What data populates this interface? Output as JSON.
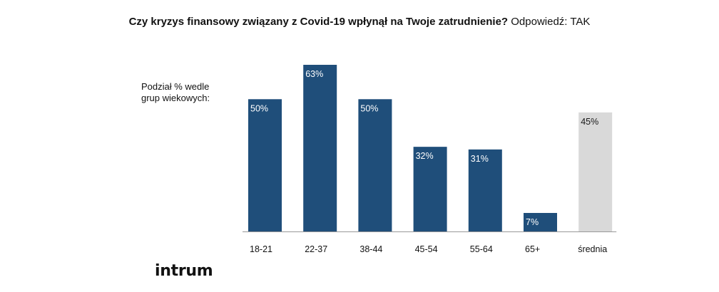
{
  "header": {
    "question": "Czy kryzys finansowy związany z Covid-19 wpłynął na Twoje zatrudnienie?",
    "answer": "Odpowiedź: TAK"
  },
  "side_note": "Podział % wedle grup wiekowych:",
  "logo_text": "intrum",
  "chart_data": {
    "type": "bar",
    "categories": [
      "18-21",
      "22-37",
      "38-44",
      "45-54",
      "55-64",
      "65+",
      "średnia"
    ],
    "values": [
      50,
      63,
      50,
      32,
      31,
      7,
      45
    ],
    "value_labels": [
      "50%",
      "63%",
      "50%",
      "32%",
      "31%",
      "7%",
      "45%"
    ],
    "unit": "%",
    "ylim": [
      0,
      63
    ],
    "colors": {
      "bar": "#1f4e7a",
      "average_bar": "#d9d9d9",
      "axis_line": "#999999"
    },
    "grid": false,
    "legend": "none"
  }
}
